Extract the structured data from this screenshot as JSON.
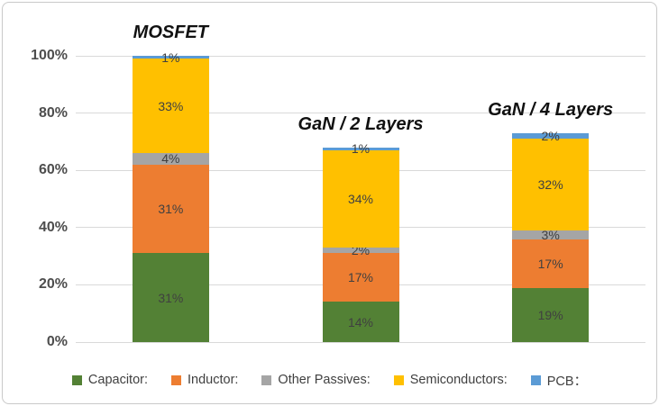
{
  "figure": {
    "background": "#FFFFFF",
    "border_color": "#C9C9C9"
  },
  "chart_data": {
    "type": "bar",
    "stacked": true,
    "title": "",
    "categories": [
      "MOSFET",
      "GaN / 2 Layers",
      "GaN / 4 Layers"
    ],
    "series": [
      {
        "name": "Capacitor:",
        "color": "#538135",
        "values": [
          31,
          14,
          19
        ]
      },
      {
        "name": "Inductor:",
        "color": "#ED7D31",
        "values": [
          31,
          17,
          17
        ]
      },
      {
        "name": "Other Passives:",
        "color": "#A5A5A5",
        "values": [
          4,
          2,
          3
        ]
      },
      {
        "name": "Semiconductors:",
        "color": "#FFC000",
        "values": [
          33,
          34,
          32
        ]
      },
      {
        "name": "PCB：",
        "color": "#5B9BD5",
        "values": [
          1,
          1,
          2
        ]
      }
    ],
    "data_label_suffix": "%",
    "yaxis": {
      "min": 0,
      "max": 100,
      "ticks": [
        "0%",
        "20%",
        "40%",
        "60%",
        "80%",
        "100%"
      ],
      "tick_values": [
        0,
        20,
        40,
        60,
        80,
        100
      ]
    },
    "grid": true,
    "gridline_color": "#D9D9D9",
    "legend_position": "bottom",
    "data_label_color": "#404040",
    "tick_label_color": "#4d4d4d"
  }
}
